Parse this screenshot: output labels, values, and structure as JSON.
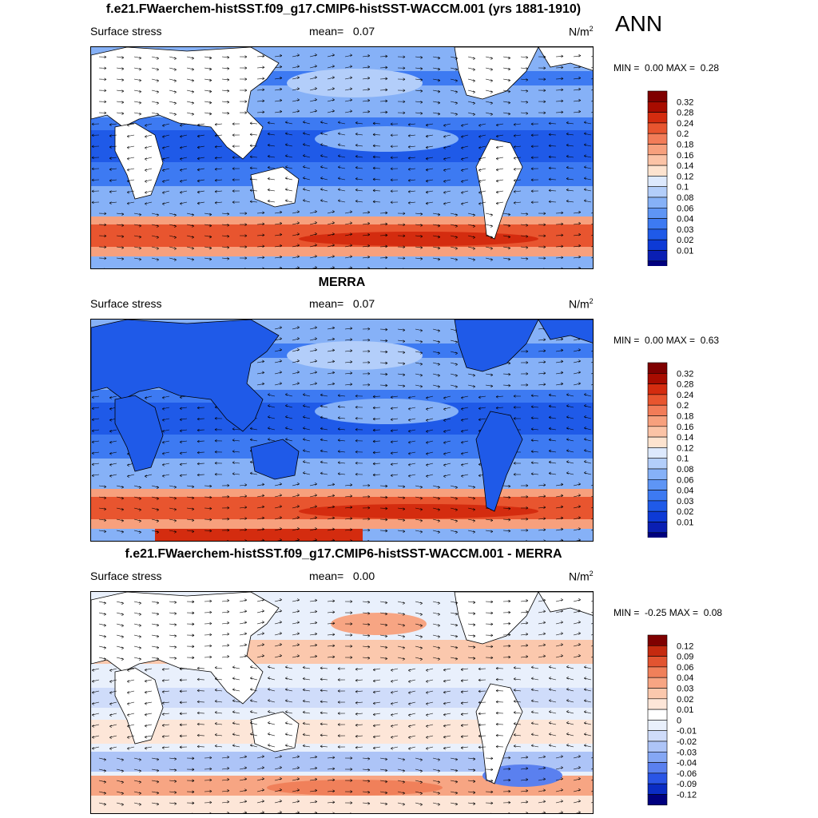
{
  "season": "ANN",
  "units_main": "N/m",
  "units_sup": "2",
  "palette_abs": [
    "#00007f",
    "#0a1fb3",
    "#0d3ad6",
    "#1f5ae8",
    "#3d7af2",
    "#5e95f5",
    "#86b1f7",
    "#b3cefa",
    "#dde9fd",
    "#fde3cf",
    "#fbc3a6",
    "#f7a07d",
    "#f27c58",
    "#e8552f",
    "#d42c0f",
    "#a80c00",
    "#7f0000"
  ],
  "palette_diff": [
    "#00007f",
    "#0a2cc4",
    "#2a55e6",
    "#5a80ef",
    "#85a7f4",
    "#adc4f7",
    "#cfdcfa",
    "#e9f0fc",
    "#ffffff",
    "#fde6d8",
    "#fbc8ad",
    "#f7a583",
    "#f0805a",
    "#e25430",
    "#c52a0f",
    "#7f0000"
  ],
  "panels": [
    {
      "title": "f.e21.FWaerchem-histSST.f09_g17.CMIP6-histSST-WACCM.001 (yrs 1881-1910)",
      "variable": "Surface stress",
      "mean_label": "mean=",
      "mean_value": "0.07",
      "min_label": "MIN =",
      "min_value": "0.00",
      "max_label": "MAX =",
      "max_value": "0.28",
      "colorbar_labels": [
        "0.32",
        "0.28",
        "0.24",
        "0.2",
        "0.18",
        "0.16",
        "0.14",
        "0.12",
        "0.1",
        "0.08",
        "0.06",
        "0.04",
        "0.03",
        "0.02",
        "0.01"
      ],
      "kind": "abs"
    },
    {
      "title": "MERRA",
      "variable": "Surface stress",
      "mean_label": "mean=",
      "mean_value": "0.07",
      "min_label": "MIN =",
      "min_value": "0.00",
      "max_label": "MAX =",
      "max_value": "0.63",
      "colorbar_labels": [
        "0.32",
        "0.28",
        "0.24",
        "0.2",
        "0.18",
        "0.16",
        "0.14",
        "0.12",
        "0.1",
        "0.08",
        "0.06",
        "0.04",
        "0.03",
        "0.02",
        "0.01"
      ],
      "kind": "abs"
    },
    {
      "title": "f.e21.FWaerchem-histSST.f09_g17.CMIP6-histSST-WACCM.001 - MERRA",
      "variable": "Surface stress",
      "mean_label": "mean=",
      "mean_value": "0.00",
      "min_label": "MIN =",
      "min_value": "-0.25",
      "max_label": "MAX =",
      "max_value": "0.08",
      "colorbar_labels": [
        "0.12",
        "0.09",
        "0.06",
        "0.04",
        "0.03",
        "0.02",
        "0.01",
        "0",
        "-0.01",
        "-0.02",
        "-0.03",
        "-0.04",
        "-0.06",
        "-0.09",
        "-0.12"
      ],
      "kind": "diff"
    }
  ]
}
